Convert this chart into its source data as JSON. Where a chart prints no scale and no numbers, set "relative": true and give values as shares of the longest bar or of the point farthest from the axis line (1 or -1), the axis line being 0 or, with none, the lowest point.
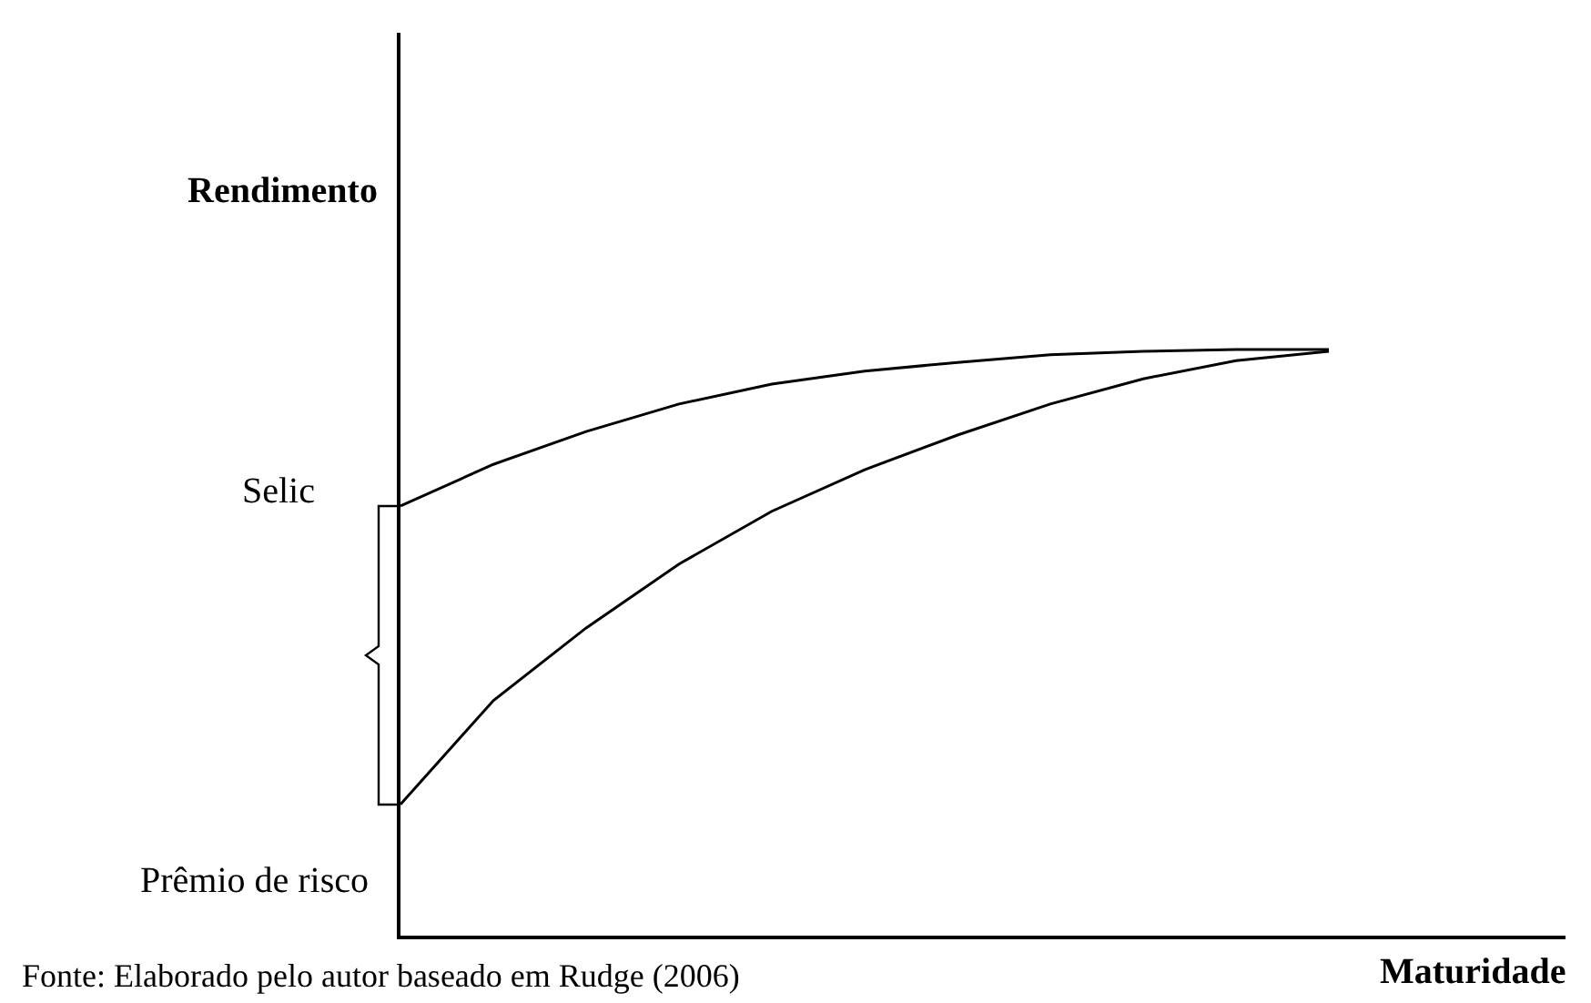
{
  "chart_data": {
    "type": "line",
    "relative": true,
    "ylabel": "Rendimento",
    "xlabel": "Maturidade",
    "categories": [
      null,
      null,
      null,
      null,
      null,
      null,
      null,
      null,
      null,
      null,
      null
    ],
    "series": [
      {
        "color": "#000000",
        "values": [
          0.733,
          0.804,
          0.86,
          0.907,
          0.941,
          0.963,
          0.978,
          0.991,
          0.997,
          1,
          1
        ]
      },
      {
        "color": "#000000",
        "values": [
          0.224,
          0.401,
          0.525,
          0.634,
          0.724,
          0.795,
          0.854,
          0.907,
          0.95,
          0.981,
          0.997
        ]
      }
    ],
    "annotations": [
      "Selic",
      "Prêmio de risco",
      "Fonte: Elaborado pelo autor baseado em Rudge (2006)"
    ],
    "marker": "none",
    "line_style": "solid"
  }
}
